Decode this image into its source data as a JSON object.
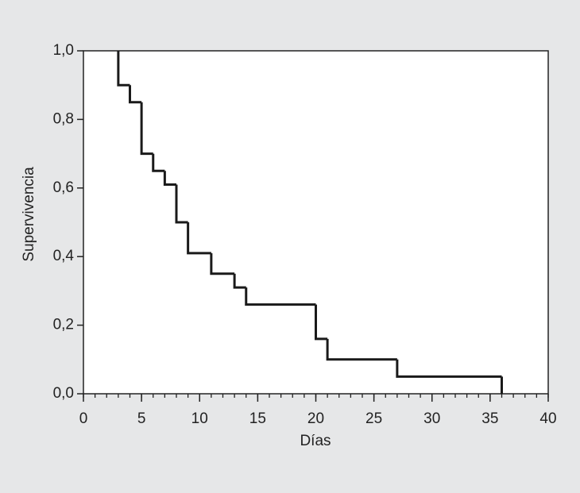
{
  "chart_data": {
    "type": "step",
    "ylabel": "Supervivencia",
    "xlabel": "Días",
    "x": [
      3,
      3,
      4,
      5,
      6,
      7,
      8,
      9,
      11,
      13,
      14,
      20,
      21,
      27,
      36
    ],
    "values": [
      1.0,
      0.9,
      0.85,
      0.7,
      0.65,
      0.61,
      0.5,
      0.41,
      0.35,
      0.31,
      0.26,
      0.16,
      0.1,
      0.05,
      0
    ],
    "color": "#1a1a1a",
    "xlim": [
      0,
      40
    ],
    "xticks": [
      0,
      5,
      10,
      15,
      20,
      25,
      30,
      35,
      40
    ],
    "xminorticks": [
      0,
      1,
      2,
      3,
      4,
      5,
      6,
      7,
      8,
      9,
      10,
      11,
      12,
      13,
      14,
      15,
      16,
      17,
      18,
      19,
      20,
      21,
      22,
      23,
      24,
      25,
      26,
      27,
      28,
      29,
      30,
      31,
      32,
      33,
      34,
      35,
      36,
      37,
      38,
      39,
      40
    ],
    "ylim": [
      0,
      1
    ],
    "yticks": [
      {
        "value": 0,
        "label": "0,0"
      },
      {
        "value": 0.2,
        "label": "0,2"
      },
      {
        "value": 0.4,
        "label": "0,4"
      },
      {
        "value": 0.6,
        "label": "0,6"
      },
      {
        "value": 0.8,
        "label": "0,8"
      },
      {
        "value": 1,
        "label": "1,0"
      }
    ]
  }
}
